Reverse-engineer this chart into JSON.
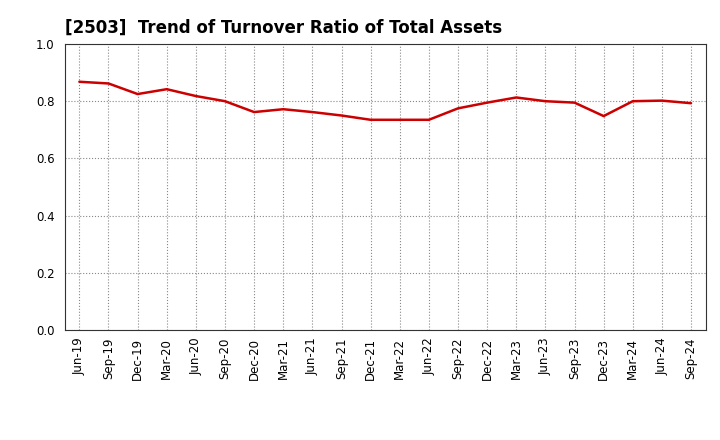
{
  "title": "[2503]  Trend of Turnover Ratio of Total Assets",
  "x_labels": [
    "Jun-19",
    "Sep-19",
    "Dec-19",
    "Mar-20",
    "Jun-20",
    "Sep-20",
    "Dec-20",
    "Mar-21",
    "Jun-21",
    "Sep-21",
    "Dec-21",
    "Mar-22",
    "Jun-22",
    "Sep-22",
    "Dec-22",
    "Mar-23",
    "Jun-23",
    "Sep-23",
    "Dec-23",
    "Mar-24",
    "Jun-24",
    "Sep-24"
  ],
  "values": [
    0.868,
    0.862,
    0.825,
    0.842,
    0.818,
    0.8,
    0.762,
    0.772,
    0.762,
    0.75,
    0.735,
    0.735,
    0.735,
    0.775,
    0.795,
    0.813,
    0.8,
    0.795,
    0.748,
    0.8,
    0.802,
    0.793
  ],
  "line_color": "#cc0000",
  "line_width": 1.8,
  "ylim": [
    0.0,
    1.0
  ],
  "yticks": [
    0.0,
    0.2,
    0.4,
    0.6,
    0.8,
    1.0
  ],
  "grid_color": "#888888",
  "background_color": "#ffffff",
  "plot_bg_color": "#ffffff",
  "title_fontsize": 12,
  "tick_fontsize": 8.5,
  "spine_color": "#333333"
}
